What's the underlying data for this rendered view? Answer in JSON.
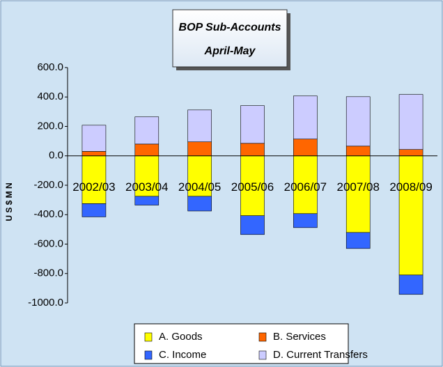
{
  "chart_data": {
    "type": "bar",
    "stacked": true,
    "title": "BOP Sub-Accounts",
    "subtitle": "April-May",
    "ylabel": "U S $ M N",
    "categories": [
      "2002/03",
      "2003/04",
      "2004/05",
      "2005/06",
      "2006/07",
      "2007/08",
      "2008/09"
    ],
    "series": [
      {
        "name": "A. Goods",
        "color": "#ffff00",
        "values": [
          -325,
          -275,
          -275,
          -407,
          -393,
          -521,
          -810
        ]
      },
      {
        "name": "B. Services",
        "color": "#ff6600",
        "values": [
          30,
          80,
          95,
          85,
          114,
          66,
          43
        ]
      },
      {
        "name": "C. Income",
        "color": "#3366ff",
        "values": [
          -90,
          -60,
          -100,
          -128,
          -95,
          -109,
          -132
        ]
      },
      {
        "name": "D. Current Transfers",
        "color": "#ccccff",
        "values": [
          178,
          185,
          217,
          256,
          293,
          336,
          374
        ]
      }
    ],
    "ylim": [
      -1000,
      600
    ],
    "yticks": [
      {
        "value": 600,
        "label": "600.0"
      },
      {
        "value": 400,
        "label": "400.0"
      },
      {
        "value": 200,
        "label": "200.0"
      },
      {
        "value": 0,
        "label": "0.0"
      },
      {
        "value": -200,
        "label": "-200.0"
      },
      {
        "value": -400,
        "label": "-400.0"
      },
      {
        "value": -600,
        "label": "-600.0"
      },
      {
        "value": -800,
        "label": "-800.0"
      },
      {
        "value": -1000,
        "label": "-1000.0"
      }
    ],
    "grid": false
  }
}
